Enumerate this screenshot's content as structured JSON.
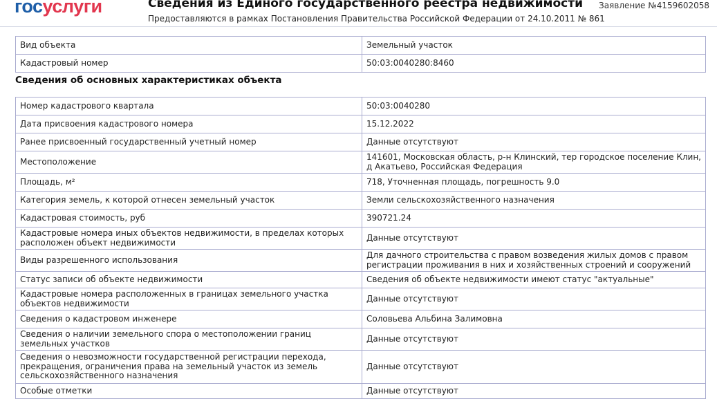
{
  "header": {
    "logo": {
      "part1": "гос",
      "part2": "услуги"
    },
    "title": "Сведения из Единого государственного реестра недвижимости",
    "subtitle": "Предоставляются в рамках Постановления Правительства Российской Федерации от 24.10.2011 № 861",
    "application_number": "Заявление №4159602058"
  },
  "object_table": [
    {
      "label": "Вид объекта",
      "value": "Земельный участок"
    },
    {
      "label": "Кадастровый номер",
      "value": "50:03:0040280:8460"
    }
  ],
  "section_title": "Сведения об основных характеристиках объекта",
  "characteristics": [
    {
      "label": "Номер кадастрового квартала",
      "value": "50:03:0040280"
    },
    {
      "label": "Дата присвоения кадастрового номера",
      "value": "15.12.2022"
    },
    {
      "label": "Ранее присвоенный государственный учетный номер",
      "value": "Данные отсутствуют"
    },
    {
      "label": "Местоположение",
      "value": "141601, Московская область, р-н Клинский, тер городское поселение Клин, д Акатьево, Российская Федерация"
    },
    {
      "label": "Площадь, м²",
      "value": "718, Уточненная площадь, погрешность 9.0"
    },
    {
      "label": "Категория земель, к которой отнесен земельный участок",
      "value": "Земли сельскохозяйственного назначения"
    },
    {
      "label": "Кадастровая стоимость, руб",
      "value": "390721.24"
    },
    {
      "label": "Кадастровые номера иных объектов недвижимости, в пределах которых расположен объект недвижимости",
      "value": "Данные отсутствуют"
    },
    {
      "label": "Виды разрешенного использования",
      "value": "Для дачного строительства с правом возведения жилых домов с правом регистрации проживания в них и хозяйственных строений и сооружений"
    },
    {
      "label": "Статус записи об объекте недвижимости",
      "value": "Сведения об объекте недвижимости имеют статус \"актуальные\""
    },
    {
      "label": "Кадастровые номера расположенных в границах земельного участка объектов недвижимости",
      "value": "Данные отсутствуют"
    },
    {
      "label": "Сведения о кадастровом инженере",
      "value": "Соловьева Альбина Залимовна"
    },
    {
      "label": "Сведения о наличии земельного спора о местоположении границ земельных участков",
      "value": "Данные отсутствуют"
    },
    {
      "label": "Сведения о невозможности государственной регистрации перехода, прекращения, ограничения права на земельный участок из земель сельскохозяйственного назначения",
      "value": "Данные отсутствуют"
    },
    {
      "label": "Особые отметки",
      "value": "Данные отсутствуют"
    }
  ]
}
